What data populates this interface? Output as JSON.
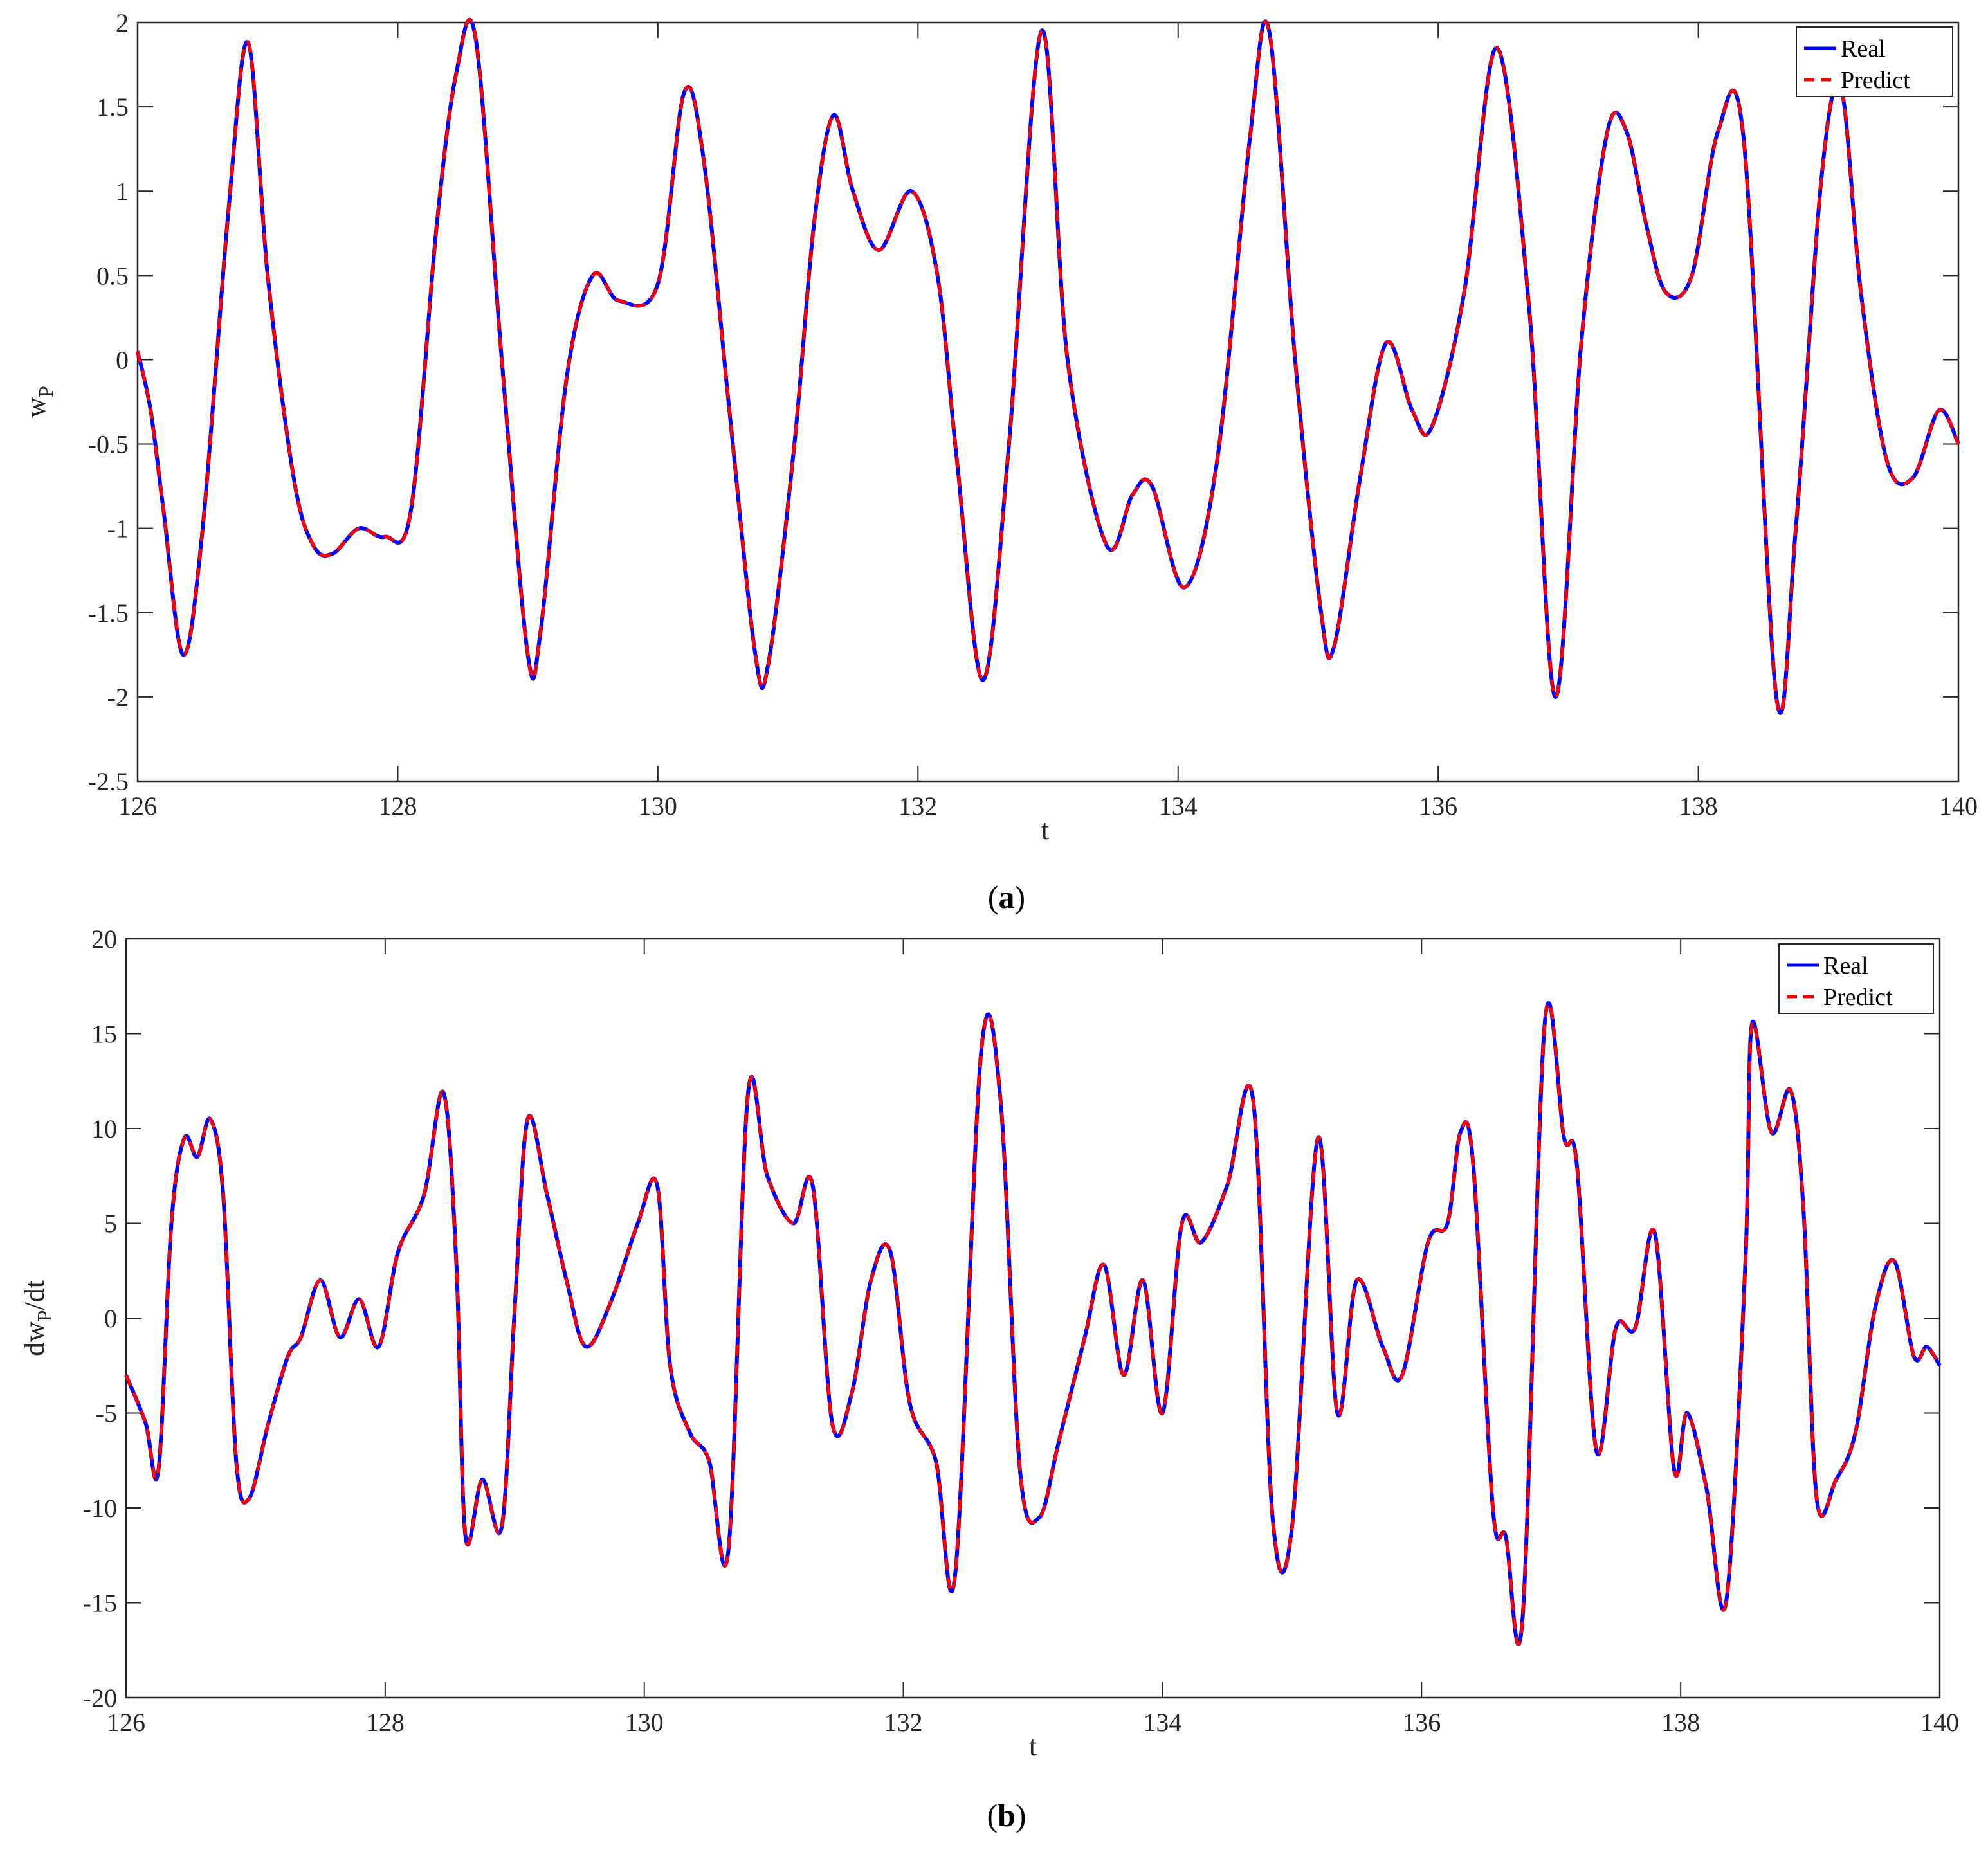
{
  "colors": {
    "real": "#0000ff",
    "predict": "#ff0000",
    "axis": "#262626",
    "grid": "#e6e6e6"
  },
  "panels": [
    {
      "caption_open": "(",
      "caption_letter": "a",
      "caption_close": ")",
      "xlabel": "t",
      "ylabel_main": "w",
      "ylabel_sub": "P",
      "ylabel_suffix": "",
      "legend": {
        "real": "Real",
        "predict": "Predict",
        "placement": "top-right"
      },
      "xlim": [
        126,
        140
      ],
      "ylim": [
        -2.5,
        2
      ],
      "xticks": [
        126,
        128,
        130,
        132,
        134,
        136,
        138,
        140
      ],
      "yticks": [
        -2.5,
        -2,
        -1.5,
        -1,
        -0.5,
        0,
        0.5,
        1,
        1.5,
        2
      ],
      "ytick_labels": [
        "-2.5",
        "-2",
        "-1.5",
        "-1",
        "-0.5",
        "0",
        "0.5",
        "1",
        "1.5",
        "2"
      ]
    },
    {
      "caption_open": "(",
      "caption_letter": "b",
      "caption_close": ")",
      "xlabel": "t",
      "ylabel_main": "dw",
      "ylabel_sub": "P",
      "ylabel_suffix": "/dt",
      "legend": {
        "real": "Real",
        "predict": "Predict",
        "placement": "top-right"
      },
      "xlim": [
        126,
        140
      ],
      "ylim": [
        -20,
        20
      ],
      "xticks": [
        126,
        128,
        130,
        132,
        134,
        136,
        138,
        140
      ],
      "yticks": [
        -20,
        -15,
        -10,
        -5,
        0,
        5,
        10,
        15,
        20
      ],
      "ytick_labels": [
        "-20",
        "-15",
        "-10",
        "-5",
        "0",
        "5",
        "10",
        "15",
        "20"
      ]
    }
  ],
  "chart_data": [
    {
      "type": "line",
      "xlabel": "t",
      "ylabel": "wP",
      "xlim": [
        126,
        140
      ],
      "ylim": [
        -2.5,
        2
      ],
      "legend_placement": "top-right",
      "grid": false,
      "series": [
        {
          "name": "Real",
          "style": "solid"
        },
        {
          "name": "Predict",
          "style": "dashed"
        }
      ],
      "x": [
        126.0,
        126.1,
        126.2,
        126.35,
        126.5,
        126.7,
        126.85,
        127.0,
        127.2,
        127.35,
        127.5,
        127.7,
        127.9,
        128.1,
        128.3,
        128.45,
        128.6,
        128.8,
        129.0,
        129.1,
        129.3,
        129.5,
        129.7,
        130.0,
        130.2,
        130.35,
        130.55,
        130.75,
        130.85,
        131.05,
        131.2,
        131.35,
        131.5,
        131.7,
        131.95,
        132.15,
        132.3,
        132.5,
        132.7,
        132.95,
        133.15,
        133.45,
        133.65,
        133.8,
        134.05,
        134.3,
        134.55,
        134.7,
        134.9,
        135.1,
        135.2,
        135.4,
        135.6,
        135.8,
        135.95,
        136.2,
        136.45,
        136.7,
        136.9,
        137.1,
        137.3,
        137.45,
        137.6,
        137.75,
        137.95,
        138.15,
        138.35,
        138.6,
        138.75,
        138.95,
        139.1,
        139.25,
        139.45,
        139.65,
        139.85,
        140.0
      ],
      "values_real": [
        0.05,
        -0.3,
        -0.9,
        -1.75,
        -1.0,
        0.9,
        1.88,
        0.5,
        -0.7,
        -1.1,
        -1.15,
        -1.0,
        -1.05,
        -0.9,
        0.8,
        1.7,
        1.9,
        0.0,
        -1.75,
        -1.6,
        -0.1,
        0.5,
        0.35,
        0.45,
        1.58,
        1.2,
        -0.3,
        -1.75,
        -1.8,
        -0.5,
        0.8,
        1.45,
        1.0,
        0.65,
        1.0,
        0.5,
        -0.6,
        -1.9,
        -0.5,
        1.95,
        0.0,
        -1.1,
        -0.8,
        -0.75,
        -1.35,
        -0.6,
        1.3,
        1.95,
        0.0,
        -1.5,
        -1.7,
        -0.7,
        0.1,
        -0.3,
        -0.4,
        0.4,
        1.85,
        0.3,
        -2.0,
        0.1,
        1.35,
        1.35,
        0.8,
        0.4,
        0.5,
        1.35,
        1.3,
        -2.0,
        -1.0,
        1.1,
        1.6,
        0.4,
        -0.6,
        -0.7,
        -0.3,
        -0.5
      ],
      "values_predict": [
        0.05,
        -0.3,
        -0.9,
        -1.75,
        -1.0,
        0.9,
        1.88,
        0.5,
        -0.7,
        -1.1,
        -1.15,
        -1.0,
        -1.05,
        -0.9,
        0.8,
        1.7,
        1.9,
        0.0,
        -1.75,
        -1.6,
        -0.1,
        0.5,
        0.35,
        0.45,
        1.58,
        1.2,
        -0.3,
        -1.75,
        -1.8,
        -0.5,
        0.8,
        1.45,
        1.0,
        0.65,
        1.0,
        0.5,
        -0.6,
        -1.9,
        -0.5,
        1.95,
        0.0,
        -1.1,
        -0.8,
        -0.75,
        -1.35,
        -0.6,
        1.3,
        1.95,
        0.0,
        -1.5,
        -1.7,
        -0.7,
        0.1,
        -0.3,
        -0.4,
        0.4,
        1.85,
        0.3,
        -2.0,
        0.1,
        1.35,
        1.35,
        0.8,
        0.4,
        0.5,
        1.35,
        1.3,
        -2.0,
        -1.0,
        1.1,
        1.6,
        0.4,
        -0.6,
        -0.7,
        -0.3,
        -0.5
      ]
    },
    {
      "type": "line",
      "xlabel": "t",
      "ylabel": "dwP/dt",
      "xlim": [
        126,
        140
      ],
      "ylim": [
        -20,
        20
      ],
      "legend_placement": "top-right",
      "grid": false,
      "series": [
        {
          "name": "Real",
          "style": "solid"
        },
        {
          "name": "Predict",
          "style": "dashed"
        }
      ],
      "x": [
        126.0,
        126.15,
        126.25,
        126.35,
        126.45,
        126.55,
        126.65,
        126.75,
        126.85,
        126.95,
        127.1,
        127.25,
        127.35,
        127.5,
        127.65,
        127.8,
        127.95,
        128.1,
        128.3,
        128.45,
        128.55,
        128.62,
        128.75,
        128.9,
        129.0,
        129.1,
        129.25,
        129.4,
        129.55,
        129.75,
        129.95,
        130.1,
        130.2,
        130.35,
        130.5,
        130.65,
        130.8,
        130.95,
        131.15,
        131.3,
        131.45,
        131.6,
        131.75,
        131.9,
        132.05,
        132.25,
        132.4,
        132.6,
        132.75,
        132.9,
        133.05,
        133.2,
        133.4,
        133.55,
        133.7,
        133.85,
        134.0,
        134.15,
        134.3,
        134.5,
        134.7,
        134.85,
        135.0,
        135.2,
        135.35,
        135.5,
        135.7,
        135.85,
        136.05,
        136.2,
        136.3,
        136.4,
        136.55,
        136.65,
        136.78,
        136.95,
        137.1,
        137.2,
        137.35,
        137.5,
        137.65,
        137.8,
        137.95,
        138.05,
        138.2,
        138.35,
        138.5,
        138.55,
        138.7,
        138.85,
        138.95,
        139.05,
        139.2,
        139.35,
        139.5,
        139.65,
        139.8,
        139.9,
        140.0
      ],
      "values_real": [
        -3.0,
        -5.5,
        -8.0,
        5.0,
        9.5,
        8.5,
        10.5,
        6.5,
        -7.5,
        -9.5,
        -5.5,
        -2.0,
        -1.0,
        2.0,
        -1.0,
        1.0,
        -1.5,
        3.5,
        6.5,
        11.9,
        2.8,
        -11.5,
        -8.5,
        -11.0,
        0.5,
        10.5,
        6.5,
        2.0,
        -1.5,
        1.0,
        5.0,
        7.0,
        -2.5,
        -6.0,
        -7.5,
        -12.2,
        11.8,
        7.5,
        5.0,
        7.0,
        -5.5,
        -4.0,
        2.0,
        3.5,
        -4.5,
        -7.5,
        -13.5,
        14.0,
        11.5,
        -8.0,
        -10.5,
        -6.5,
        -1.0,
        2.8,
        -3.0,
        2.0,
        -5.0,
        5.0,
        4.0,
        7.0,
        11.5,
        -10.5,
        -11.0,
        9.5,
        -5.0,
        2.0,
        -1.5,
        -3.0,
        4.0,
        5.0,
        9.8,
        8.0,
        -10.0,
        -11.5,
        -15.8,
        15.5,
        9.5,
        8.0,
        -7.0,
        -0.5,
        -0.5,
        4.5,
        -8.0,
        -5.0,
        -9.0,
        -15.0,
        3.0,
        15.5,
        9.8,
        12.0,
        5.5,
        -9.5,
        -8.5,
        -6.0,
        0.5,
        3.0,
        -2.0,
        -1.5,
        -2.5
      ],
      "values_predict": [
        -3.0,
        -5.5,
        -8.0,
        5.0,
        9.5,
        8.5,
        10.5,
        6.5,
        -7.5,
        -9.5,
        -5.5,
        -2.0,
        -1.0,
        2.0,
        -1.0,
        1.0,
        -1.5,
        3.5,
        6.5,
        11.9,
        2.8,
        -11.5,
        -8.5,
        -11.0,
        0.5,
        10.5,
        6.5,
        2.0,
        -1.5,
        1.0,
        5.0,
        7.0,
        -2.5,
        -6.0,
        -7.5,
        -12.2,
        11.8,
        7.5,
        5.0,
        7.0,
        -5.5,
        -4.0,
        2.0,
        3.5,
        -4.5,
        -7.5,
        -13.5,
        14.0,
        11.5,
        -8.0,
        -10.5,
        -6.5,
        -1.0,
        2.8,
        -3.0,
        2.0,
        -5.0,
        5.0,
        4.0,
        7.0,
        11.5,
        -10.5,
        -11.0,
        9.5,
        -5.0,
        2.0,
        -1.5,
        -3.0,
        4.0,
        5.0,
        9.8,
        8.0,
        -10.0,
        -11.5,
        -15.8,
        15.5,
        9.5,
        8.0,
        -7.0,
        -0.5,
        -0.5,
        4.5,
        -8.0,
        -5.0,
        -9.0,
        -15.0,
        3.0,
        15.5,
        9.8,
        12.0,
        5.5,
        -9.5,
        -8.5,
        -6.0,
        0.5,
        3.0,
        -2.0,
        -1.5,
        -2.5
      ]
    }
  ]
}
